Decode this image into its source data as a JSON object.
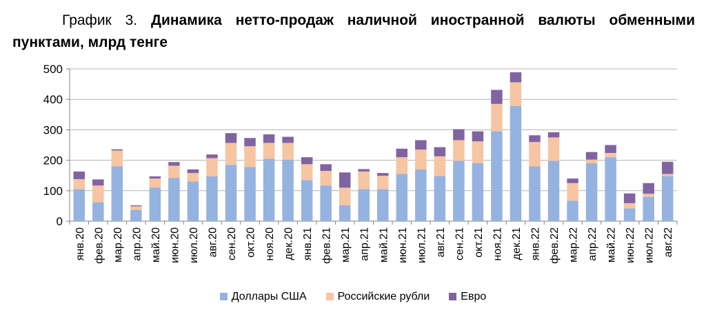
{
  "chart_data": {
    "type": "bar",
    "stacked": true,
    "title_prefix": "График 3.",
    "title": "Динамика нетто-продаж наличной иностранной валюты обменными пунктами, млрд тенге",
    "ylim": [
      0,
      500
    ],
    "yticks": [
      "0",
      "100",
      "200",
      "300",
      "400",
      "500"
    ],
    "grid": true,
    "legend_position": "bottom",
    "categories": [
      "янв.20",
      "фев.20",
      "мар.20",
      "апр.20",
      "май.20",
      "июн.20",
      "июл.20",
      "авг.20",
      "сен.20",
      "окт.20",
      "ноя.20",
      "дек.20",
      "янв.21",
      "фев.21",
      "мар.21",
      "апр.21",
      "май.21",
      "июн.21",
      "июл.21",
      "авг.21",
      "сен.21",
      "окт.21",
      "ноя.21",
      "дек.21",
      "янв.22",
      "фев.22",
      "мар.22",
      "апр.22",
      "май.22",
      "июн.22",
      "июл.22",
      "авг.22"
    ],
    "series": [
      {
        "name": "Доллары США",
        "color": "#95b3e0",
        "values": [
          105,
          62,
          180,
          37,
          110,
          142,
          130,
          147,
          185,
          178,
          205,
          202,
          135,
          117,
          52,
          105,
          105,
          155,
          170,
          148,
          198,
          190,
          295,
          378,
          180,
          198,
          67,
          190,
          210,
          42,
          80,
          148
        ]
      },
      {
        "name": "Российские рубли",
        "color": "#f6c5a1",
        "values": [
          33,
          55,
          52,
          12,
          30,
          40,
          28,
          60,
          72,
          68,
          52,
          55,
          52,
          48,
          58,
          58,
          44,
          55,
          65,
          65,
          68,
          72,
          90,
          78,
          80,
          77,
          58,
          12,
          14,
          17,
          10,
          7
        ]
      },
      {
        "name": "Евро",
        "color": "#8064a2",
        "values": [
          25,
          20,
          4,
          3,
          7,
          12,
          12,
          12,
          32,
          27,
          28,
          20,
          23,
          22,
          50,
          8,
          9,
          28,
          31,
          30,
          36,
          33,
          46,
          33,
          22,
          17,
          15,
          25,
          26,
          32,
          35,
          40
        ]
      }
    ]
  }
}
